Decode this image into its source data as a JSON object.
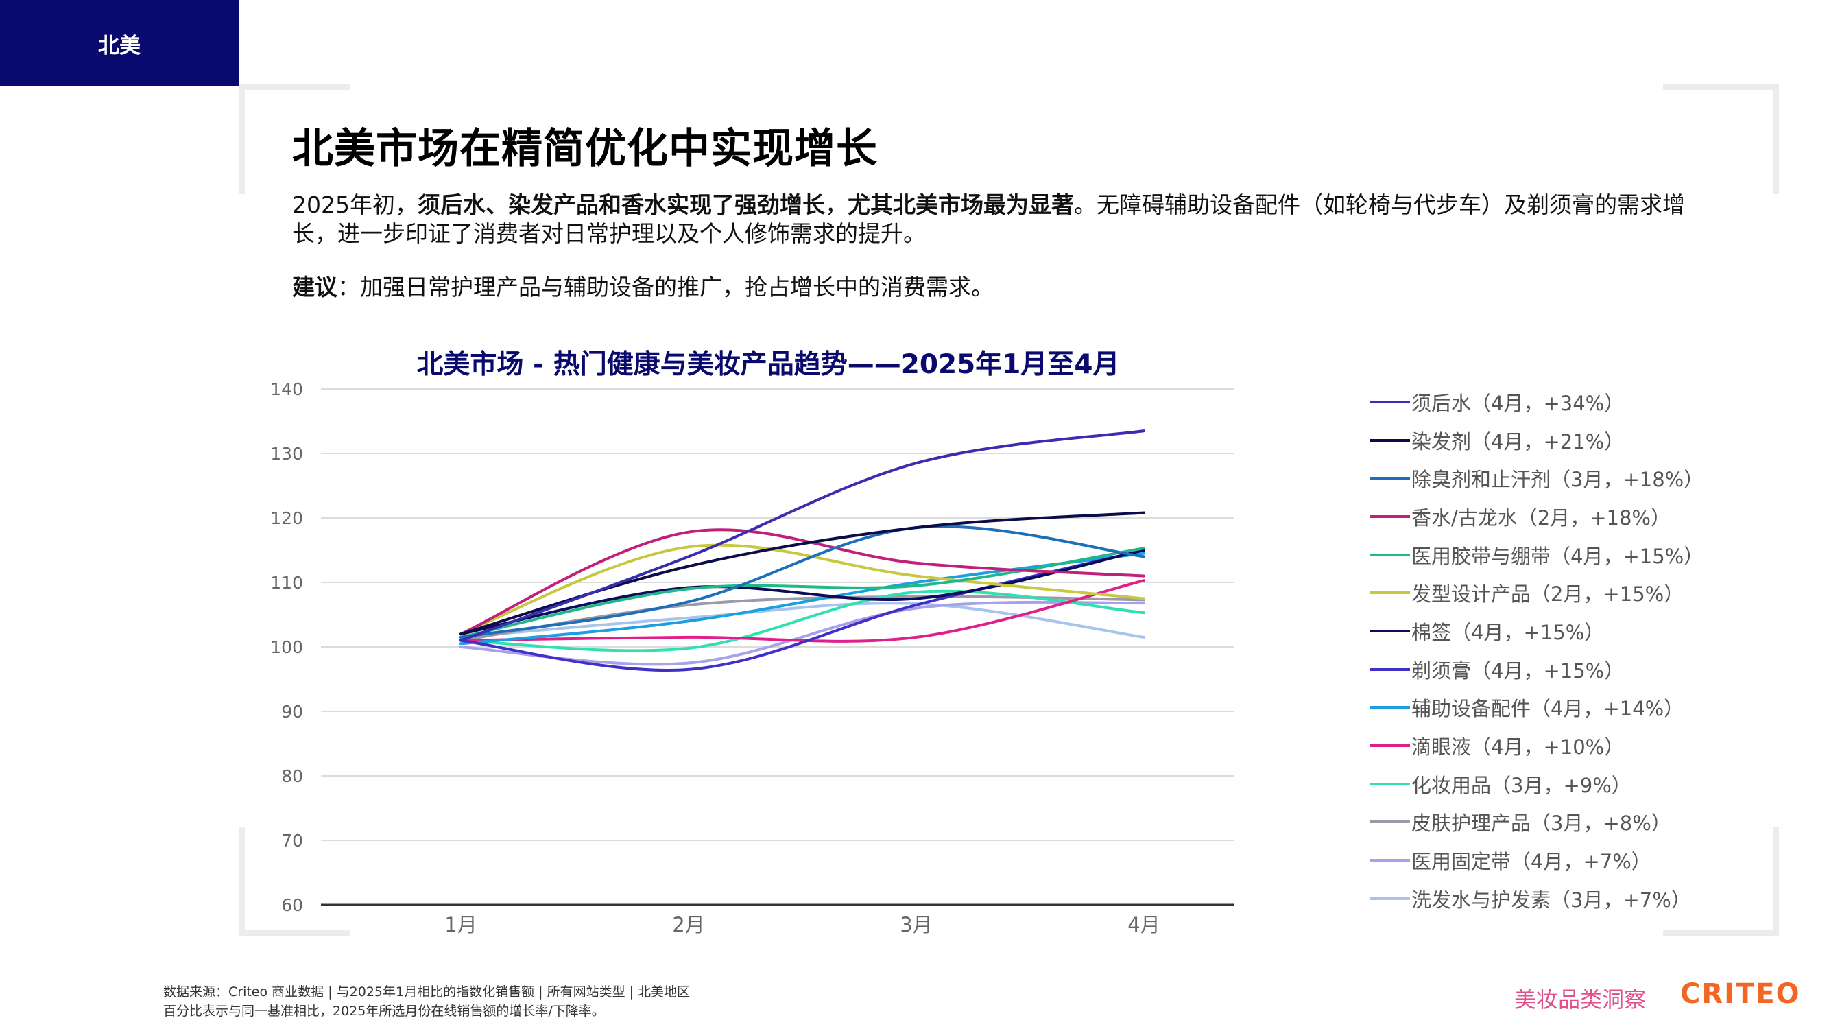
{
  "header": {
    "region_tab": "北美"
  },
  "page": {
    "title": "北美市场在精简优化中实现增长",
    "intro": {
      "p1": "2025年初，",
      "b1": "须后水、染发产品和香水实现了强劲增长",
      "p2": "，",
      "b2": "尤其北美市场最为显著",
      "p3": "。无障碍辅助设备配件（如轮椅与代步车）及剃须膏的需求增长，进一步印证了消费者对日常护理以及个人修饰需求的提升。"
    },
    "advice": {
      "label": "建议",
      "text": "：加强日常护理产品与辅助设备的推广，抢占增长中的消费需求。"
    }
  },
  "chart_data": {
    "type": "line",
    "title": "北美市场 - 热门健康与美妆产品趋势——2025年1月至4月",
    "categories": [
      "1月",
      "2月",
      "3月",
      "4月"
    ],
    "y_ticks": [
      60,
      70,
      80,
      90,
      100,
      110,
      120,
      130,
      140
    ],
    "ylim": [
      60,
      140
    ],
    "grid": true,
    "legend_position": "right",
    "xlabel": "",
    "ylabel": "",
    "series": [
      {
        "name": "须后水（4月，+34%）",
        "color": "#3a2db0",
        "values": [
          101,
          114,
          128.5,
          133.5
        ]
      },
      {
        "name": "染发剂（4月，+21%）",
        "color": "#0c0c4a",
        "values": [
          102,
          112.5,
          118.5,
          120.8
        ]
      },
      {
        "name": "除臭剂和止汗剂（3月，+18%）",
        "color": "#1c6fb8",
        "values": [
          101.5,
          107,
          118.5,
          114
        ]
      },
      {
        "name": "香水/古龙水（2月，+18%）",
        "color": "#c0207a",
        "values": [
          102,
          117.8,
          113,
          111
        ]
      },
      {
        "name": "医用胶带与绷带（4月，+15%）",
        "color": "#20b888",
        "values": [
          101.5,
          109,
          109.5,
          115.3
        ]
      },
      {
        "name": "发型设计产品（2月，+15%）",
        "color": "#c8c840",
        "values": [
          102,
          115.5,
          111,
          107.5
        ]
      },
      {
        "name": "棉签（4月，+15%）",
        "color": "#0c0c5a",
        "values": [
          102,
          109.2,
          107.5,
          115
        ]
      },
      {
        "name": "剃须膏（4月，+15%）",
        "color": "#4030c8",
        "values": [
          101,
          96.5,
          106.5,
          115
        ]
      },
      {
        "name": "辅助设备配件（4月，+14%）",
        "color": "#1aa0e0",
        "values": [
          100.5,
          104,
          110,
          114.5
        ]
      },
      {
        "name": "滴眼液（4月，+10%）",
        "color": "#e0208a",
        "values": [
          101,
          101.5,
          101.5,
          110.3
        ]
      },
      {
        "name": "化妆用品（3月，+9%）",
        "color": "#30e0b0",
        "values": [
          101,
          99.8,
          108.5,
          105.3
        ]
      },
      {
        "name": "皮肤护理产品（3月，+8%）",
        "color": "#9a9aa8",
        "values": [
          101,
          106.5,
          107.8,
          107.3
        ]
      },
      {
        "name": "医用固定带（4月，+7%）",
        "color": "#a8a0e8",
        "values": [
          100,
          97.5,
          106,
          106.8
        ]
      },
      {
        "name": "洗发水与护发素（3月，+7%）",
        "color": "#a8c4ec",
        "values": [
          101.5,
          104.5,
          106.7,
          101.5
        ]
      }
    ]
  },
  "footer": {
    "source": "数据来源：Criteo 商业数据 | 与2025年1月相比的指数化销售额 | 所有网站类型 | 北美地区",
    "note": "百分比表示与同一基准相比，2025年所选月份在线销售额的增长率/下降率。",
    "brand_insight": "美妆品类洞察",
    "brand_logo": "CRITEO"
  }
}
